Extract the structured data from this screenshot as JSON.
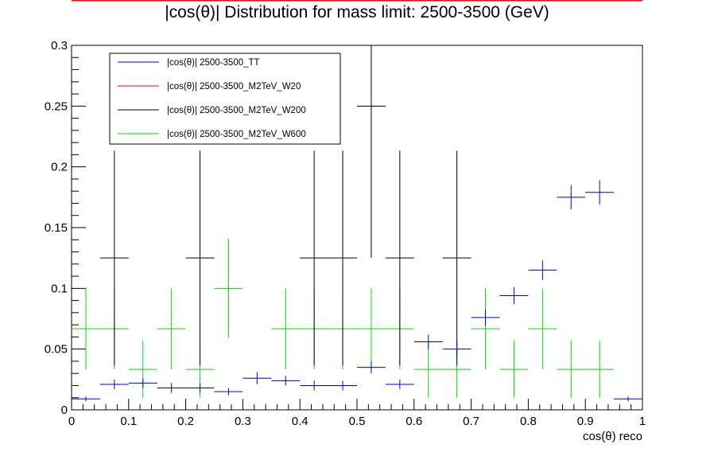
{
  "chart_data": {
    "type": "scatter",
    "title": "|cos(θ)| Distribution for mass limit: 2500-3500 (GeV)",
    "xlabel": "cos(θ) reco",
    "ylabel": "",
    "xlim": [
      0,
      1
    ],
    "ylim": [
      0,
      0.3
    ],
    "x_ticks": [
      "0",
      "0.1",
      "0.2",
      "0.3",
      "0.4",
      "0.5",
      "0.6",
      "0.7",
      "0.8",
      "0.9",
      "1"
    ],
    "y_ticks": [
      "0",
      "0.05",
      "0.1",
      "0.15",
      "0.2",
      "0.25",
      "0.3"
    ],
    "x": [
      0.025,
      0.075,
      0.125,
      0.175,
      0.225,
      0.275,
      0.325,
      0.375,
      0.425,
      0.475,
      0.525,
      0.575,
      0.625,
      0.675,
      0.725,
      0.775,
      0.825,
      0.875,
      0.925,
      0.975
    ],
    "bin_half_width": 0.025,
    "legend_position": "top-left",
    "grid": false,
    "series": [
      {
        "name": "|cos(θ)| 2500-3500_TT",
        "color": "#0000cc",
        "points": [
          {
            "x": 0.025,
            "y": 0.009,
            "err": 0.002
          },
          {
            "x": 0.075,
            "y": 0.021,
            "err": 0.004
          },
          {
            "x": 0.125,
            "y": 0.022,
            "err": 0.004
          },
          {
            "x": 0.175,
            "y": 0.018,
            "err": 0.004
          },
          {
            "x": 0.225,
            "y": 0.018,
            "err": 0.004
          },
          {
            "x": 0.275,
            "y": 0.015,
            "err": 0.003
          },
          {
            "x": 0.325,
            "y": 0.026,
            "err": 0.005
          },
          {
            "x": 0.375,
            "y": 0.024,
            "err": 0.004
          },
          {
            "x": 0.425,
            "y": 0.02,
            "err": 0.004
          },
          {
            "x": 0.475,
            "y": 0.02,
            "err": 0.004
          },
          {
            "x": 0.525,
            "y": 0.035,
            "err": 0.005
          },
          {
            "x": 0.575,
            "y": 0.021,
            "err": 0.004
          },
          {
            "x": 0.625,
            "y": 0.056,
            "err": 0.006
          },
          {
            "x": 0.675,
            "y": 0.05,
            "err": 0.006
          },
          {
            "x": 0.725,
            "y": 0.076,
            "err": 0.007
          },
          {
            "x": 0.775,
            "y": 0.094,
            "err": 0.007
          },
          {
            "x": 0.825,
            "y": 0.115,
            "err": 0.008
          },
          {
            "x": 0.875,
            "y": 0.175,
            "err": 0.01
          },
          {
            "x": 0.925,
            "y": 0.179,
            "err": 0.01
          },
          {
            "x": 0.975,
            "y": 0.009,
            "err": 0.002
          }
        ]
      },
      {
        "name": "|cos(θ)| 2500-3500_M2TeV_W20",
        "color": "#ff0000",
        "points": []
      },
      {
        "name": "|cos(θ)| 2500-3500_M2TeV_W200",
        "color": "#000000",
        "points": [
          {
            "x": 0.075,
            "y": 0.125,
            "err": 0.0884
          },
          {
            "x": 0.225,
            "y": 0.125,
            "err": 0.0884
          },
          {
            "x": 0.425,
            "y": 0.125,
            "err": 0.0884
          },
          {
            "x": 0.475,
            "y": 0.125,
            "err": 0.0884
          },
          {
            "x": 0.525,
            "y": 0.25,
            "err": 0.125
          },
          {
            "x": 0.575,
            "y": 0.125,
            "err": 0.0884
          },
          {
            "x": 0.675,
            "y": 0.125,
            "err": 0.0884
          }
        ]
      },
      {
        "name": "|cos(θ)| 2500-3500_M2TeV_W600",
        "color": "#00dd00",
        "points": [
          {
            "x": 0.025,
            "y": 0.0667,
            "err": 0.0333
          },
          {
            "x": 0.075,
            "y": 0.0667,
            "err": 0.0333
          },
          {
            "x": 0.125,
            "y": 0.0333,
            "err": 0.0236
          },
          {
            "x": 0.175,
            "y": 0.0667,
            "err": 0.0333
          },
          {
            "x": 0.225,
            "y": 0.0333,
            "err": 0.0236
          },
          {
            "x": 0.275,
            "y": 0.1,
            "err": 0.0408
          },
          {
            "x": 0.375,
            "y": 0.0667,
            "err": 0.0333
          },
          {
            "x": 0.425,
            "y": 0.0667,
            "err": 0.0333
          },
          {
            "x": 0.475,
            "y": 0.0667,
            "err": 0.0333
          },
          {
            "x": 0.525,
            "y": 0.0667,
            "err": 0.0333
          },
          {
            "x": 0.575,
            "y": 0.0667,
            "err": 0.0333
          },
          {
            "x": 0.625,
            "y": 0.0333,
            "err": 0.0236
          },
          {
            "x": 0.675,
            "y": 0.0333,
            "err": 0.0236
          },
          {
            "x": 0.725,
            "y": 0.0667,
            "err": 0.0333
          },
          {
            "x": 0.775,
            "y": 0.0333,
            "err": 0.0236
          },
          {
            "x": 0.825,
            "y": 0.0667,
            "err": 0.0333
          },
          {
            "x": 0.875,
            "y": 0.0333,
            "err": 0.0236
          },
          {
            "x": 0.925,
            "y": 0.0333,
            "err": 0.0236
          }
        ]
      }
    ]
  }
}
